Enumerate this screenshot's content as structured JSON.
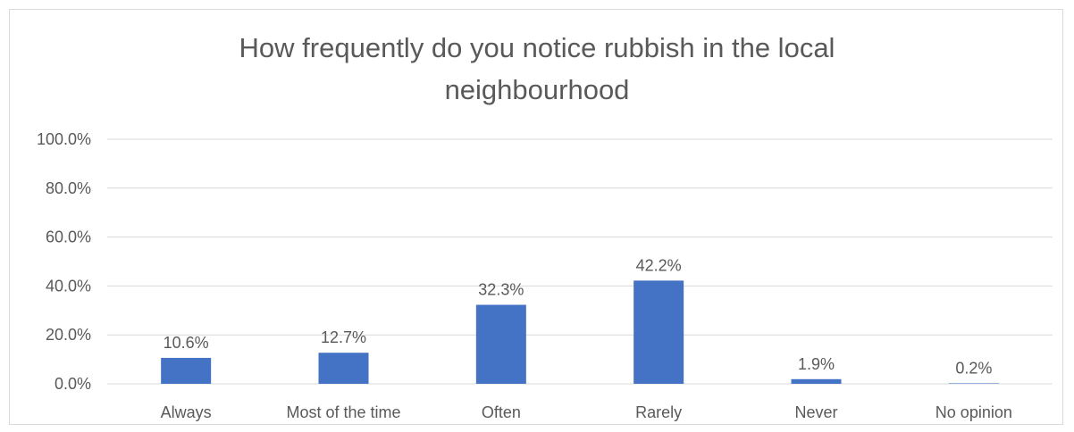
{
  "chart_data": {
    "type": "bar",
    "title": "How frequently do you notice rubbish in the local\nneighbourhood",
    "xlabel": "",
    "ylabel": "",
    "categories": [
      "Always",
      "Most of the time",
      "Often",
      "Rarely",
      "Never",
      "No opinion"
    ],
    "values": [
      10.6,
      12.7,
      32.3,
      42.2,
      1.9,
      0.2
    ],
    "data_labels": [
      "10.6%",
      "12.7%",
      "32.3%",
      "42.2%",
      "1.9%",
      "0.2%"
    ],
    "ylim": [
      0,
      100
    ],
    "yticks": [
      0,
      20,
      40,
      60,
      80,
      100
    ],
    "ytick_labels": [
      "0.0%",
      "20.0%",
      "40.0%",
      "60.0%",
      "80.0%",
      "100.0%"
    ],
    "grid": true,
    "legend": "none",
    "bar_color": "#4472c4",
    "grid_color": "#d9d9d9"
  }
}
